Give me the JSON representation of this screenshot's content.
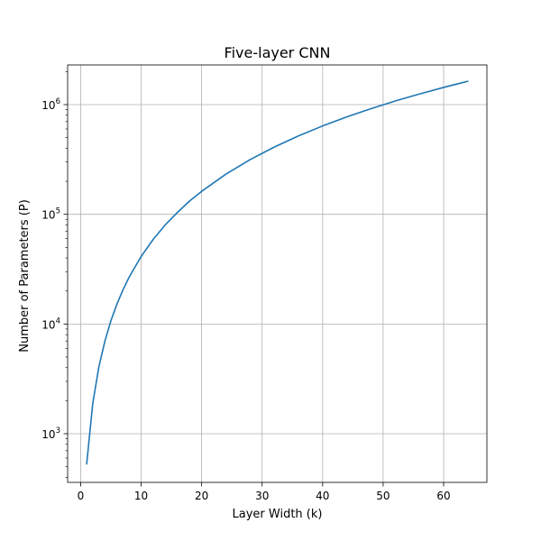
{
  "chart_data": {
    "type": "line",
    "title": "Five-layer CNN",
    "xlabel": "Layer Width (k)",
    "ylabel": "Number of Parameters (P)",
    "xlim": [
      -2.15,
      67.15
    ],
    "ylim": [
      360,
      2300000
    ],
    "yscale": "log",
    "grid": true,
    "x_ticks": [
      0,
      10,
      20,
      30,
      40,
      50,
      60
    ],
    "x_tick_labels": [
      "0",
      "10",
      "20",
      "30",
      "40",
      "50",
      "60"
    ],
    "y_ticks": [
      1000,
      10000,
      100000,
      1000000
    ],
    "y_tick_labels": [
      {
        "base": "10",
        "exp": "3"
      },
      {
        "base": "10",
        "exp": "4"
      },
      {
        "base": "10",
        "exp": "5"
      },
      {
        "base": "10",
        "exp": "6"
      }
    ],
    "series": [
      {
        "color": "#1f77b4",
        "x": [
          1,
          2,
          3,
          4,
          5,
          6,
          7,
          8,
          10,
          12,
          14,
          16,
          18,
          20,
          24,
          28,
          32,
          36,
          40,
          44,
          48,
          52,
          56,
          60,
          64
        ],
        "y": [
          530,
          1880,
          4030,
          6950,
          10700,
          15200,
          20500,
          26600,
          41300,
          59200,
          80200,
          104000,
          132000,
          162000,
          232000,
          315000,
          410000,
          518000,
          639000,
          773000,
          919000,
          1079000,
          1250000,
          1435000,
          1632000
        ]
      }
    ]
  }
}
